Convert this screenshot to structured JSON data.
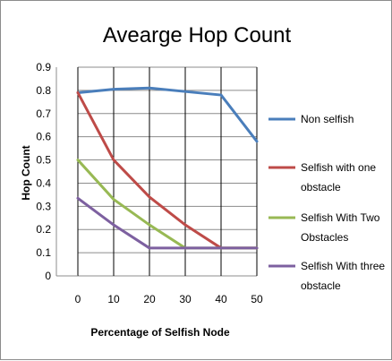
{
  "chart_data": {
    "type": "line",
    "title": "Avearge Hop Count",
    "xlabel": "Percentage of Selfish Node",
    "ylabel": "Hop Count",
    "x": [
      0,
      10,
      20,
      30,
      40,
      50
    ],
    "ylim": [
      0,
      0.9
    ],
    "yticks": [
      "0",
      "0.1",
      "0.2",
      "0.3",
      "0.4",
      "0.5",
      "0.6",
      "0.7",
      "0.8",
      "0.9"
    ],
    "grid": true,
    "legend_position": "right",
    "series": [
      {
        "name": "Non selfish",
        "legend_lines": [
          "Non selfish"
        ],
        "color": "#4a7ebb",
        "values": [
          0.79,
          0.805,
          0.81,
          0.795,
          0.78,
          0.58
        ]
      },
      {
        "name": "Selfish with one obstacle",
        "legend_lines": [
          "Selfish with one",
          "obstacle"
        ],
        "color": "#be4b48",
        "values": [
          0.79,
          0.5,
          0.34,
          0.22,
          0.12,
          0.12
        ]
      },
      {
        "name": "Selfish With Two Obstacles",
        "legend_lines": [
          "Selfish With Two",
          "Obstacles"
        ],
        "color": "#98b954",
        "values": [
          0.5,
          0.33,
          0.22,
          0.12,
          0.12,
          0.12
        ]
      },
      {
        "name": "Selfish With three obstacle",
        "legend_lines": [
          "Selfish With three",
          "obstacle"
        ],
        "color": "#7d60a0",
        "values": [
          0.335,
          0.22,
          0.12,
          0.12,
          0.12,
          0.12
        ]
      }
    ]
  }
}
